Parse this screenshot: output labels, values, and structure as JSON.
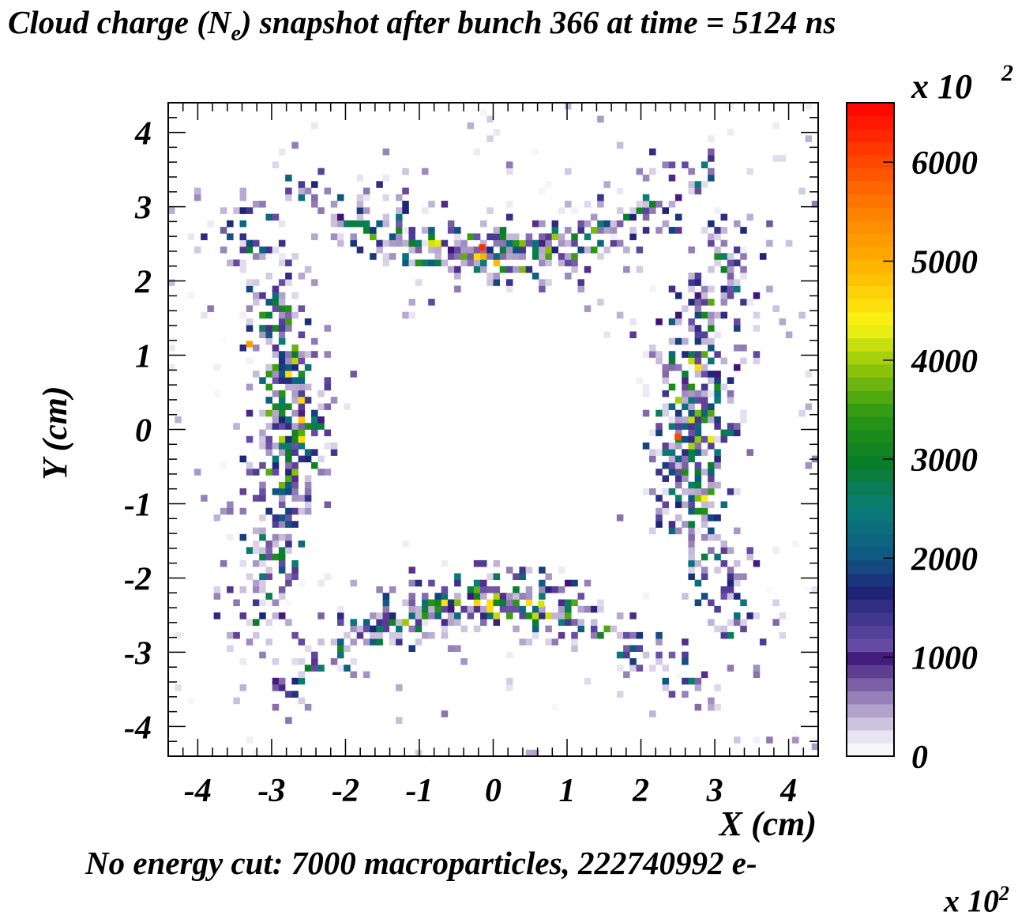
{
  "title": {
    "prefix": "Cloud charge (N",
    "sub": "e",
    "suffix": ") snapshot after bunch 366 at time = 5124 ns"
  },
  "footer": "No energy cut: 7000 macroparticles, 222740992 e-",
  "cutoff_text": "x 10  2",
  "colors": {
    "palette_low": "#ffffff",
    "purple": "#5a2d91",
    "navy": "#2a1a78",
    "teal": "#0a7a78",
    "green": "#1a8a2a",
    "yellow": "#f4f000",
    "orange": "#ff8c00",
    "red": "#ff0000"
  },
  "chart_data": {
    "type": "heatmap",
    "title": "Cloud charge (Ne) snapshot after bunch 366 at time = 5124 ns",
    "xlabel": "X (cm)",
    "ylabel": "Y (cm)",
    "xlim": [
      -4.4,
      4.4
    ],
    "ylim": [
      -4.4,
      4.4
    ],
    "xticks": [
      "-4",
      "-3",
      "-2",
      "-1",
      "0",
      "1",
      "2",
      "3",
      "4"
    ],
    "yticks": [
      "4",
      "3",
      "2",
      "1",
      "0",
      "-1",
      "-2",
      "-3",
      "-4"
    ],
    "colorbar": {
      "label_multiplier": "x 10",
      "exponent": "2",
      "min": 0,
      "max": 6600,
      "ticks": [
        "0",
        "1000",
        "2000",
        "3000",
        "4000",
        "5000",
        "6000"
      ]
    },
    "grid": false,
    "description_regions": [
      {
        "region": "top arc",
        "x_range": [
          -2.9,
          2.7
        ],
        "y_range": [
          2.2,
          3.7
        ],
        "peak": 6200,
        "peak_x": -0.15,
        "peak_y": 2.45
      },
      {
        "region": "bottom arc",
        "x_range": [
          -2.9,
          2.9
        ],
        "y_range": [
          -3.9,
          -2.2
        ],
        "peak": 4200,
        "peak_x": 0.65,
        "peak_y": -2.35
      },
      {
        "region": "left band",
        "x_range": [
          -4.0,
          -1.6
        ],
        "y_range": [
          -3.0,
          2.8
        ],
        "peak": 5200,
        "peak_x": -3.3,
        "peak_y": 1.15
      },
      {
        "region": "right band",
        "x_range": [
          1.5,
          4.0
        ],
        "y_range": [
          -3.0,
          2.8
        ],
        "peak": 6000,
        "peak_x": 2.5,
        "peak_y": -0.1
      }
    ]
  }
}
